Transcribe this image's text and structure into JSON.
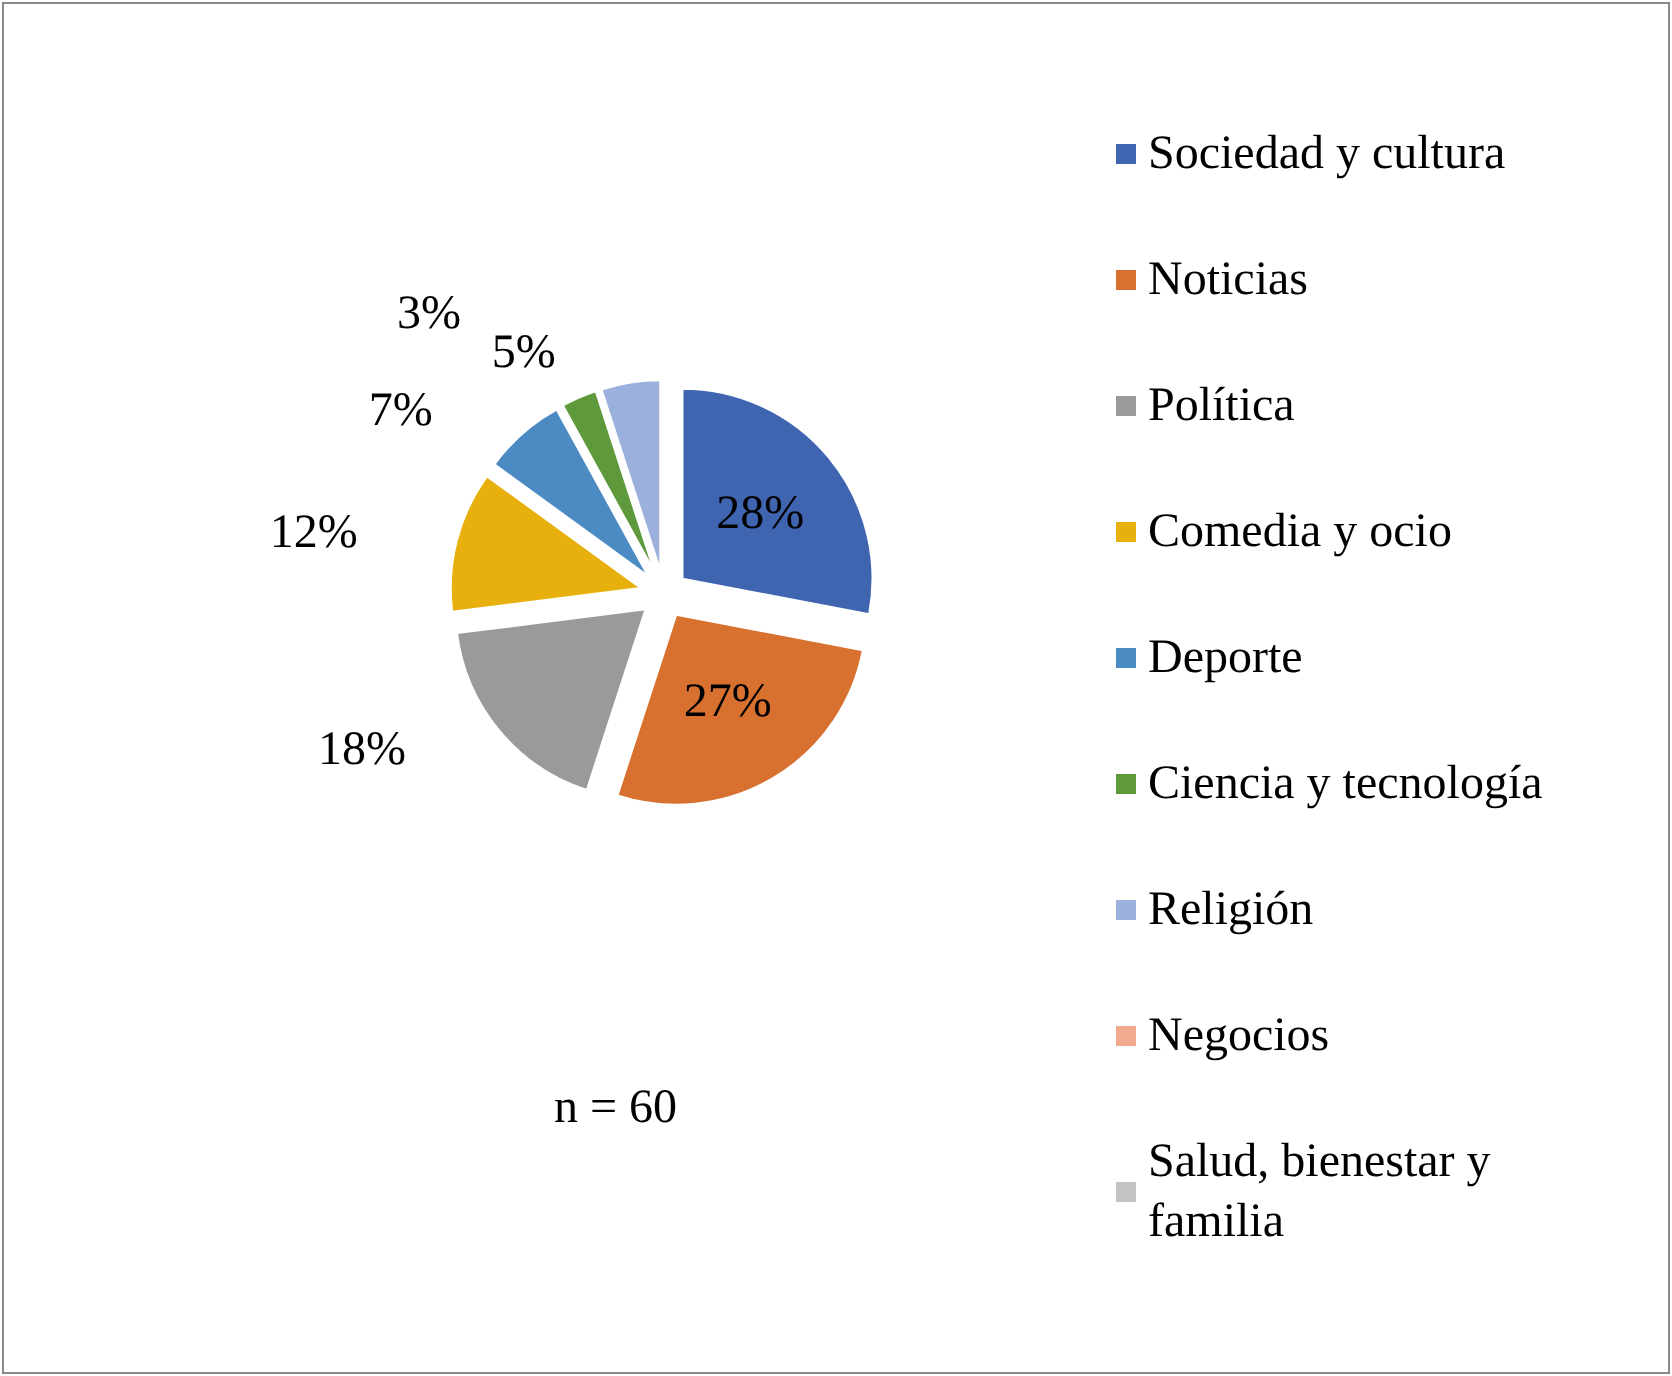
{
  "chart_data": {
    "type": "pie",
    "categories": [
      "Sociedad y cultura",
      "Noticias",
      "Política",
      "Comedia y ocio",
      "Deporte",
      "Ciencia y tecnología",
      "Religión",
      "Negocios",
      "Salud, bienestar y familia"
    ],
    "values": [
      28,
      27,
      18,
      12,
      7,
      3,
      5,
      0,
      0
    ],
    "value_labels": [
      "28%",
      "27%",
      "18%",
      "12%",
      "7%",
      "3%",
      "5%",
      null,
      null
    ],
    "colors": [
      "#3f64b0",
      "#d8702f",
      "#9a9a9a",
      "#e8b00d",
      "#4c8ac4",
      "#5e9a3c",
      "#9bb0dc",
      "#f2a98d",
      "#c3c3c3"
    ],
    "legend": "right",
    "annotations": [
      "n = 60"
    ]
  }
}
